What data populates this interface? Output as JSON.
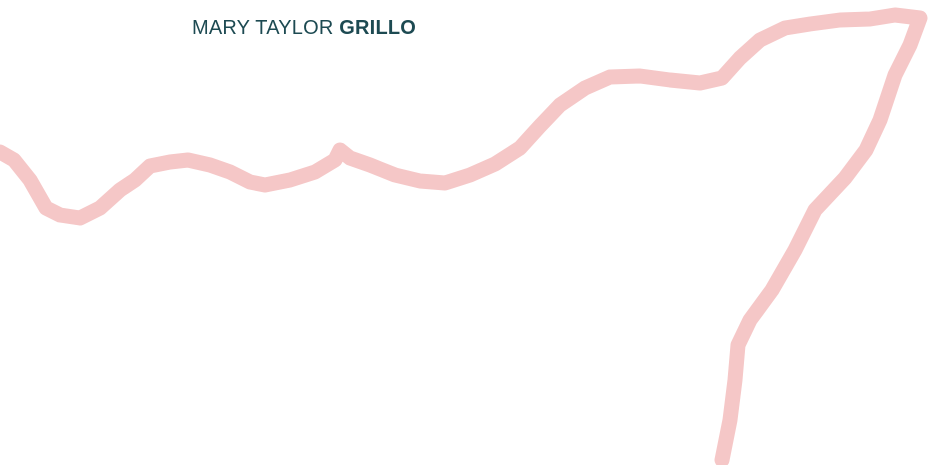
{
  "header": {
    "name_first": "MARY TAYLOR",
    "name_last": "GRILLO"
  }
}
